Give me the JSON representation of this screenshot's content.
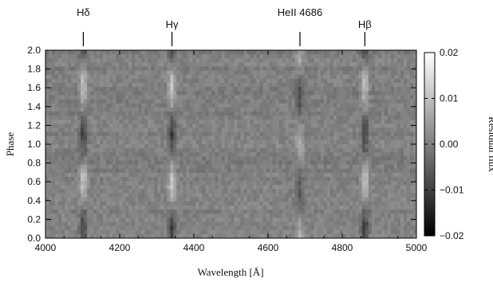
{
  "chart_data": {
    "type": "heatmap",
    "title": "",
    "xlabel": "Wavelength [Å]",
    "ylabel": "Phase",
    "xlim": [
      4000,
      5000
    ],
    "ylim": [
      0.0,
      2.0
    ],
    "x_ticks": [
      4000,
      4200,
      4400,
      4600,
      4800,
      5000
    ],
    "y_ticks": [
      "0.0",
      "0.2",
      "0.4",
      "0.6",
      "0.8",
      "1.0",
      "1.2",
      "1.4",
      "1.6",
      "1.8",
      "2.0"
    ],
    "colorbar": {
      "label": "Residual flux",
      "range": [
        -0.02,
        0.02
      ],
      "ticks": [
        "−0.02",
        "−0.01",
        "0.00",
        "0.01",
        "0.02"
      ],
      "colormap": "grayscale (black = −0.02, white = 0.02)"
    },
    "line_markers": [
      {
        "label": "Hδ",
        "wavelength": 4102
      },
      {
        "label": "Hγ",
        "wavelength": 4341
      },
      {
        "label": "HeII 4686",
        "wavelength": 4686
      },
      {
        "label": "Hβ",
        "wavelength": 4861
      }
    ],
    "features": [
      {
        "line": "Hδ",
        "wavelength": 4102,
        "peak_bright_phase": [
          0.6,
          1.6
        ],
        "peak_dark_phase": [
          0.1,
          1.0
        ],
        "amplitude": 0.01
      },
      {
        "line": "Hγ",
        "wavelength": 4341,
        "peak_bright_phase": [
          0.6,
          1.6
        ],
        "peak_dark_phase": [
          0.1,
          1.0
        ],
        "amplitude": 0.011
      },
      {
        "line": "HeII 4686",
        "wavelength": 4686,
        "peak_bright_phase": [
          0.0,
          1.0
        ],
        "peak_dark_phase": [
          0.5,
          1.5
        ],
        "amplitude": 0.007
      },
      {
        "line": "Hβ",
        "wavelength": 4861,
        "peak_bright_phase": [
          0.6,
          1.6
        ],
        "peak_dark_phase": [
          0.1,
          1.0
        ],
        "amplitude": 0.01
      }
    ]
  }
}
